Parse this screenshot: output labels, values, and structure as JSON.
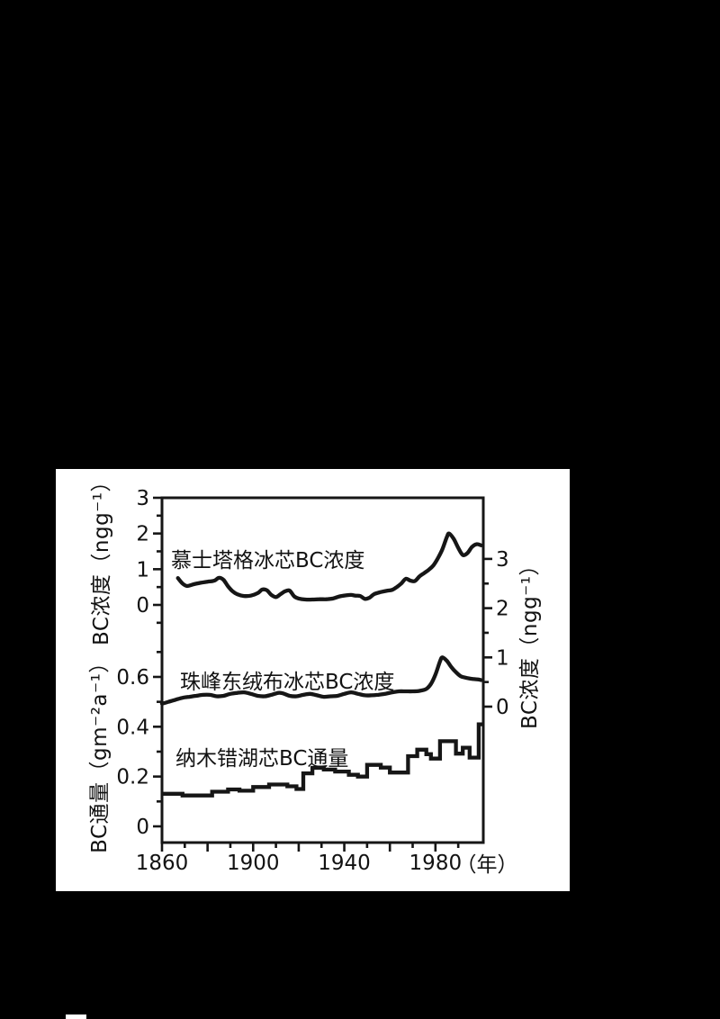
{
  "page": {
    "background": "#000000"
  },
  "panel": {
    "background": "#ffffff"
  },
  "chart_data": {
    "type": "line",
    "title": "",
    "description_colors": {
      "line": "#161616",
      "text": "#121212"
    },
    "x_axis": {
      "unit_label": "（年）",
      "range": [
        1860,
        2001
      ],
      "major_ticks": [
        1860,
        1880,
        1900,
        1920,
        1940,
        1960,
        1980
      ],
      "minor_ticks": [
        1870,
        1890,
        1910,
        1930,
        1950,
        1970,
        1990
      ],
      "labeled_ticks": [
        {
          "v": 1860,
          "t": "1860"
        },
        {
          "v": 1900,
          "t": "1900"
        },
        {
          "v": 1940,
          "t": "1940"
        },
        {
          "v": 1980,
          "t": "1980"
        }
      ]
    },
    "axes": {
      "left_top": {
        "label": "BC浓度（ngg⁻¹）",
        "ticks": [
          {
            "v": 3,
            "t": "3"
          },
          {
            "v": 2,
            "t": "2"
          },
          {
            "v": 1,
            "t": "1"
          },
          {
            "v": 0,
            "t": "0"
          }
        ],
        "minor_ticks": [
          2.5,
          1.5,
          0.5,
          -0.5
        ],
        "range": [
          -0.6,
          3
        ]
      },
      "left_bottom": {
        "label": "BC通量（gm⁻²a⁻¹）",
        "ticks": [
          {
            "v": 0.6,
            "t": "0.6"
          },
          {
            "v": 0.4,
            "t": "0.4"
          },
          {
            "v": 0.2,
            "t": "0.2"
          },
          {
            "v": 0,
            "t": "0"
          }
        ],
        "minor_ticks": [
          0.7,
          0.5,
          0.3,
          0.1
        ],
        "range": [
          -0.07,
          0.75
        ]
      },
      "right": {
        "label": "BC浓度（ngg⁻¹）",
        "ticks": [
          {
            "v": 3,
            "t": "3"
          },
          {
            "v": 2,
            "t": "2"
          },
          {
            "v": 1,
            "t": "1"
          },
          {
            "v": 0,
            "t": "0"
          }
        ],
        "minor_ticks": [
          2.5,
          1.5,
          0.5
        ],
        "range": [
          -0.3,
          4.2
        ]
      }
    },
    "series": [
      {
        "name": "慕士塔格冰芯BC浓度",
        "axis": "left_top",
        "style": "smooth",
        "points": [
          [
            1867,
            0.75
          ],
          [
            1869,
            0.6
          ],
          [
            1871,
            0.53
          ],
          [
            1874,
            0.58
          ],
          [
            1877,
            0.62
          ],
          [
            1880,
            0.65
          ],
          [
            1883,
            0.68
          ],
          [
            1885,
            0.76
          ],
          [
            1887,
            0.7
          ],
          [
            1889,
            0.52
          ],
          [
            1891,
            0.38
          ],
          [
            1893,
            0.3
          ],
          [
            1896,
            0.25
          ],
          [
            1899,
            0.26
          ],
          [
            1902,
            0.33
          ],
          [
            1904,
            0.43
          ],
          [
            1906,
            0.41
          ],
          [
            1908,
            0.28
          ],
          [
            1910,
            0.22
          ],
          [
            1912,
            0.3
          ],
          [
            1914,
            0.38
          ],
          [
            1916,
            0.4
          ],
          [
            1918,
            0.24
          ],
          [
            1920,
            0.18
          ],
          [
            1923,
            0.15
          ],
          [
            1926,
            0.15
          ],
          [
            1929,
            0.16
          ],
          [
            1932,
            0.16
          ],
          [
            1935,
            0.18
          ],
          [
            1938,
            0.24
          ],
          [
            1941,
            0.27
          ],
          [
            1943,
            0.28
          ],
          [
            1945,
            0.26
          ],
          [
            1947,
            0.25
          ],
          [
            1949,
            0.17
          ],
          [
            1951,
            0.2
          ],
          [
            1953,
            0.3
          ],
          [
            1956,
            0.36
          ],
          [
            1959,
            0.4
          ],
          [
            1961,
            0.42
          ],
          [
            1963,
            0.5
          ],
          [
            1965,
            0.6
          ],
          [
            1967,
            0.73
          ],
          [
            1969,
            0.68
          ],
          [
            1971,
            0.67
          ],
          [
            1973,
            0.8
          ],
          [
            1975,
            0.89
          ],
          [
            1977,
            0.98
          ],
          [
            1979,
            1.1
          ],
          [
            1981,
            1.3
          ],
          [
            1983,
            1.55
          ],
          [
            1985,
            1.9
          ],
          [
            1986,
            2.0
          ],
          [
            1988,
            1.85
          ],
          [
            1990,
            1.6
          ],
          [
            1992,
            1.4
          ],
          [
            1994,
            1.45
          ],
          [
            1996,
            1.62
          ],
          [
            1998,
            1.7
          ],
          [
            2000,
            1.67
          ]
        ]
      },
      {
        "name": "珠峰东绒布冰芯BC浓度",
        "axis": "right",
        "style": "smooth",
        "points": [
          [
            1860,
            0.06
          ],
          [
            1863,
            0.1
          ],
          [
            1866,
            0.14
          ],
          [
            1869,
            0.18
          ],
          [
            1872,
            0.2
          ],
          [
            1875,
            0.22
          ],
          [
            1878,
            0.24
          ],
          [
            1881,
            0.24
          ],
          [
            1884,
            0.21
          ],
          [
            1887,
            0.22
          ],
          [
            1890,
            0.26
          ],
          [
            1893,
            0.28
          ],
          [
            1896,
            0.29
          ],
          [
            1899,
            0.26
          ],
          [
            1902,
            0.22
          ],
          [
            1905,
            0.21
          ],
          [
            1908,
            0.24
          ],
          [
            1911,
            0.28
          ],
          [
            1913,
            0.27
          ],
          [
            1916,
            0.22
          ],
          [
            1919,
            0.21
          ],
          [
            1922,
            0.24
          ],
          [
            1925,
            0.26
          ],
          [
            1928,
            0.23
          ],
          [
            1931,
            0.2
          ],
          [
            1934,
            0.21
          ],
          [
            1937,
            0.22
          ],
          [
            1940,
            0.26
          ],
          [
            1943,
            0.29
          ],
          [
            1946,
            0.26
          ],
          [
            1949,
            0.23
          ],
          [
            1952,
            0.23
          ],
          [
            1955,
            0.24
          ],
          [
            1958,
            0.26
          ],
          [
            1961,
            0.29
          ],
          [
            1964,
            0.31
          ],
          [
            1967,
            0.31
          ],
          [
            1970,
            0.31
          ],
          [
            1973,
            0.32
          ],
          [
            1976,
            0.36
          ],
          [
            1978,
            0.46
          ],
          [
            1980,
            0.65
          ],
          [
            1982,
            0.92
          ],
          [
            1983,
            1.0
          ],
          [
            1985,
            0.93
          ],
          [
            1987,
            0.8
          ],
          [
            1989,
            0.7
          ],
          [
            1991,
            0.62
          ],
          [
            1993,
            0.59
          ],
          [
            1995,
            0.57
          ],
          [
            1997,
            0.56
          ],
          [
            1999,
            0.55
          ],
          [
            2000,
            0.54
          ]
        ]
      },
      {
        "name": "纳木错湖芯BC通量",
        "axis": "left_bottom",
        "style": "step",
        "end_year": 2001,
        "points": [
          [
            1860,
            0.131
          ],
          [
            1869,
            0.124
          ],
          [
            1882,
            0.139
          ],
          [
            1889,
            0.148
          ],
          [
            1894,
            0.143
          ],
          [
            1900,
            0.158
          ],
          [
            1907,
            0.168
          ],
          [
            1915,
            0.161
          ],
          [
            1919,
            0.15
          ],
          [
            1922,
            0.213
          ],
          [
            1926,
            0.235
          ],
          [
            1931,
            0.228
          ],
          [
            1936,
            0.22
          ],
          [
            1942,
            0.207
          ],
          [
            1946,
            0.2
          ],
          [
            1950,
            0.247
          ],
          [
            1956,
            0.236
          ],
          [
            1960,
            0.216
          ],
          [
            1968,
            0.282
          ],
          [
            1972,
            0.308
          ],
          [
            1976,
            0.29
          ],
          [
            1978,
            0.272
          ],
          [
            1982,
            0.342
          ],
          [
            1989,
            0.292
          ],
          [
            1992,
            0.316
          ],
          [
            1995,
            0.276
          ],
          [
            1999,
            0.41
          ]
        ]
      }
    ],
    "legend_position": "inline-labels",
    "grid": false
  }
}
